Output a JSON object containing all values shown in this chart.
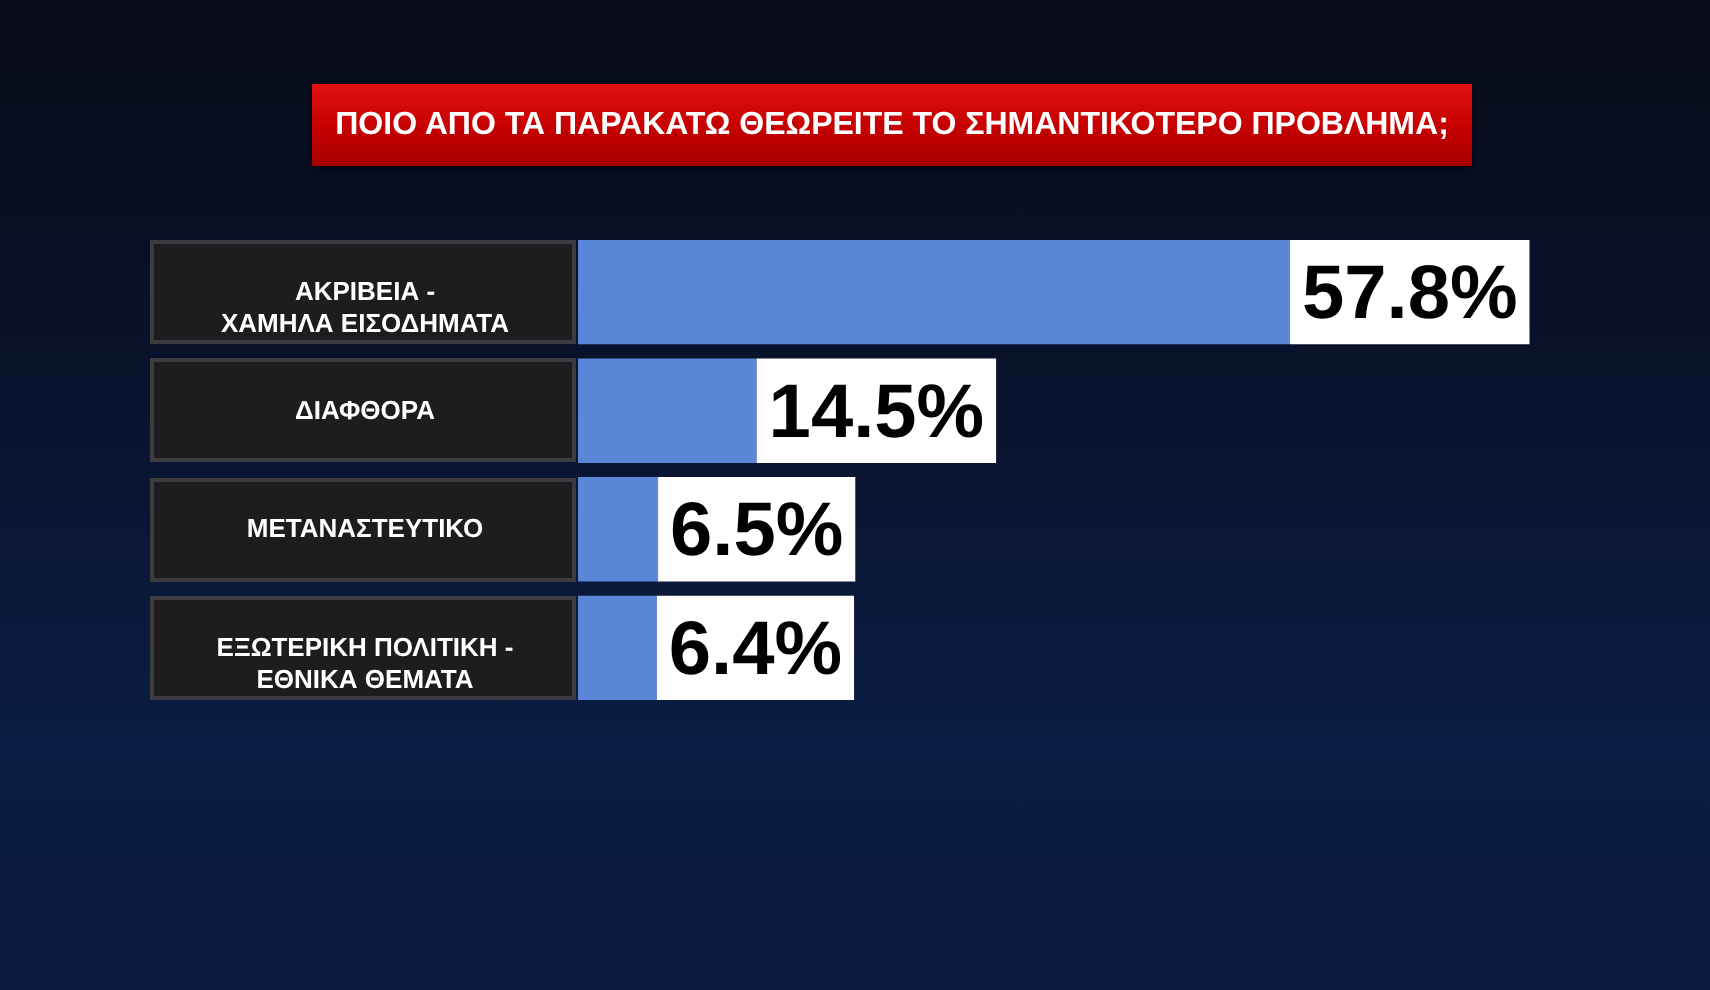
{
  "chart_data": {
    "type": "bar",
    "orientation": "horizontal",
    "title": "ΠΟΙΟ ΑΠΟ ΤΑ ΠΑΡΑΚΑΤΩ ΘΕΩΡΕΙΤΕ ΤΟ ΣΗΜΑΝΤΙΚΟΤΕΡΟ ΠΡΟΒΛΗΜΑ;",
    "categories": [
      "ΑΚΡΙΒΕΙΑ - ΧΑΜΗΛΑ ΕΙΣΟΔΗΜΑΤΑ",
      "ΔΙΑΦΘΟΡΑ",
      "ΜΕΤΑΝΑΣΤΕΥΤΙΚΟ",
      "ΕΞΩΤΕΡΙΚΗ ΠΟΛΙΤΙΚΗ - ΕΘΝΙΚΑ ΘΕΜΑΤΑ"
    ],
    "values": [
      57.8,
      14.5,
      6.5,
      6.4
    ],
    "value_labels": [
      "57.8%",
      "14.5%",
      "6.5%",
      "6.4%"
    ],
    "color": "#5a87d8"
  }
}
